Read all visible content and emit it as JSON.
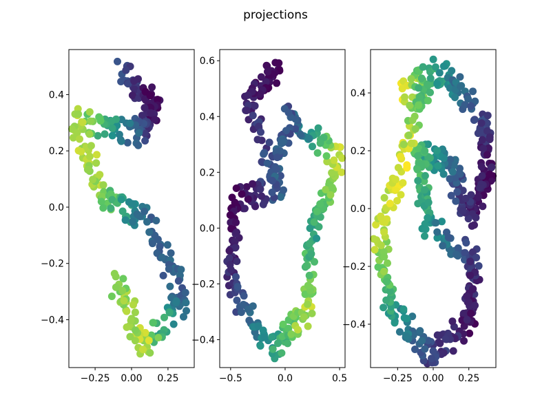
{
  "figure": {
    "title": "projections",
    "colormap": [
      "#440154",
      "#3b528b",
      "#21918c",
      "#5ec962",
      "#fde725"
    ]
  },
  "chart_data": [
    {
      "type": "scatter",
      "xlim": [
        -0.43,
        0.43
      ],
      "ylim": [
        -0.57,
        0.56
      ],
      "xticks": [
        {
          "v": -0.25,
          "label": "−0.25"
        },
        {
          "v": 0.0,
          "label": "0.00"
        },
        {
          "v": 0.25,
          "label": "0.25"
        }
      ],
      "yticks": [
        {
          "v": -0.4,
          "label": "−0.4"
        },
        {
          "v": -0.2,
          "label": "−0.2"
        },
        {
          "v": 0.0,
          "label": "0.0"
        },
        {
          "v": 0.2,
          "label": "0.2"
        },
        {
          "v": 0.4,
          "label": "0.4"
        }
      ],
      "points_per_segment": 40,
      "path": [
        {
          "x": -0.08,
          "y": 0.49,
          "c": 0.25
        },
        {
          "x": 0.17,
          "y": 0.35,
          "c": 0.0
        },
        {
          "x": 0.02,
          "y": 0.26,
          "c": 0.3
        },
        {
          "x": -0.38,
          "y": 0.32,
          "c": 0.9
        },
        {
          "x": -0.22,
          "y": 0.05,
          "c": 0.85
        },
        {
          "x": 0.1,
          "y": -0.05,
          "c": 0.3
        },
        {
          "x": 0.37,
          "y": -0.32,
          "c": 0.3
        },
        {
          "x": 0.08,
          "y": -0.5,
          "c": 0.9
        },
        {
          "x": -0.12,
          "y": -0.25,
          "c": 0.8
        }
      ]
    },
    {
      "type": "scatter",
      "xlim": [
        -0.6,
        0.55
      ],
      "ylim": [
        -0.5,
        0.64
      ],
      "xticks": [
        {
          "v": -0.5,
          "label": "−0.5"
        },
        {
          "v": 0.0,
          "label": "0.0"
        },
        {
          "v": 0.5,
          "label": "0.5"
        }
      ],
      "yticks": [
        {
          "v": -0.4,
          "label": "−0.4"
        },
        {
          "v": -0.2,
          "label": "−0.2"
        },
        {
          "v": 0.0,
          "label": "0.0"
        },
        {
          "v": 0.2,
          "label": "0.2"
        },
        {
          "v": 0.4,
          "label": "0.4"
        },
        {
          "v": 0.6,
          "label": "0.6"
        }
      ],
      "points_per_segment": 40,
      "path": [
        {
          "x": -0.05,
          "y": 0.58,
          "c": 0.0
        },
        {
          "x": -0.35,
          "y": 0.45,
          "c": 0.1
        },
        {
          "x": -0.05,
          "y": 0.15,
          "c": 0.3
        },
        {
          "x": -0.45,
          "y": 0.1,
          "c": 0.0
        },
        {
          "x": -0.5,
          "y": -0.2,
          "c": 0.15
        },
        {
          "x": -0.12,
          "y": -0.43,
          "c": 0.55
        },
        {
          "x": 0.2,
          "y": -0.3,
          "c": 0.9
        },
        {
          "x": 0.25,
          "y": 0.0,
          "c": 0.55
        },
        {
          "x": 0.5,
          "y": 0.25,
          "c": 0.95
        },
        {
          "x": 0.05,
          "y": 0.4,
          "c": 0.25
        },
        {
          "x": -0.1,
          "y": 0.2,
          "c": 0.3
        }
      ]
    },
    {
      "type": "scatter",
      "xlim": [
        -0.44,
        0.44
      ],
      "ylim": [
        -0.55,
        0.55
      ],
      "xticks": [
        {
          "v": -0.25,
          "label": "−0.25"
        },
        {
          "v": 0.0,
          "label": "0.00"
        },
        {
          "v": 0.25,
          "label": "0.25"
        }
      ],
      "yticks": [
        {
          "v": -0.4,
          "label": "−0.4"
        },
        {
          "v": -0.2,
          "label": "−0.2"
        },
        {
          "v": 0.0,
          "label": "0.0"
        },
        {
          "v": 0.2,
          "label": "0.2"
        },
        {
          "v": 0.4,
          "label": "0.4"
        }
      ],
      "points_per_segment": 40,
      "path": [
        {
          "x": -0.2,
          "y": 0.4,
          "c": 0.95
        },
        {
          "x": 0.05,
          "y": 0.48,
          "c": 0.5
        },
        {
          "x": 0.35,
          "y": 0.3,
          "c": 0.2
        },
        {
          "x": 0.38,
          "y": 0.1,
          "c": 0.05
        },
        {
          "x": 0.25,
          "y": -0.02,
          "c": 0.1
        },
        {
          "x": 0.1,
          "y": 0.15,
          "c": 0.35
        },
        {
          "x": -0.1,
          "y": 0.2,
          "c": 0.7
        },
        {
          "x": -0.05,
          "y": -0.05,
          "c": 0.55
        },
        {
          "x": 0.3,
          "y": -0.18,
          "c": 0.15
        },
        {
          "x": 0.25,
          "y": -0.4,
          "c": 0.05
        },
        {
          "x": -0.02,
          "y": -0.5,
          "c": 0.2
        },
        {
          "x": -0.3,
          "y": -0.35,
          "c": 0.55
        },
        {
          "x": -0.38,
          "y": -0.1,
          "c": 0.9
        },
        {
          "x": -0.2,
          "y": 0.2,
          "c": 0.95
        },
        {
          "x": -0.05,
          "y": 0.45,
          "c": 0.65
        }
      ]
    }
  ]
}
